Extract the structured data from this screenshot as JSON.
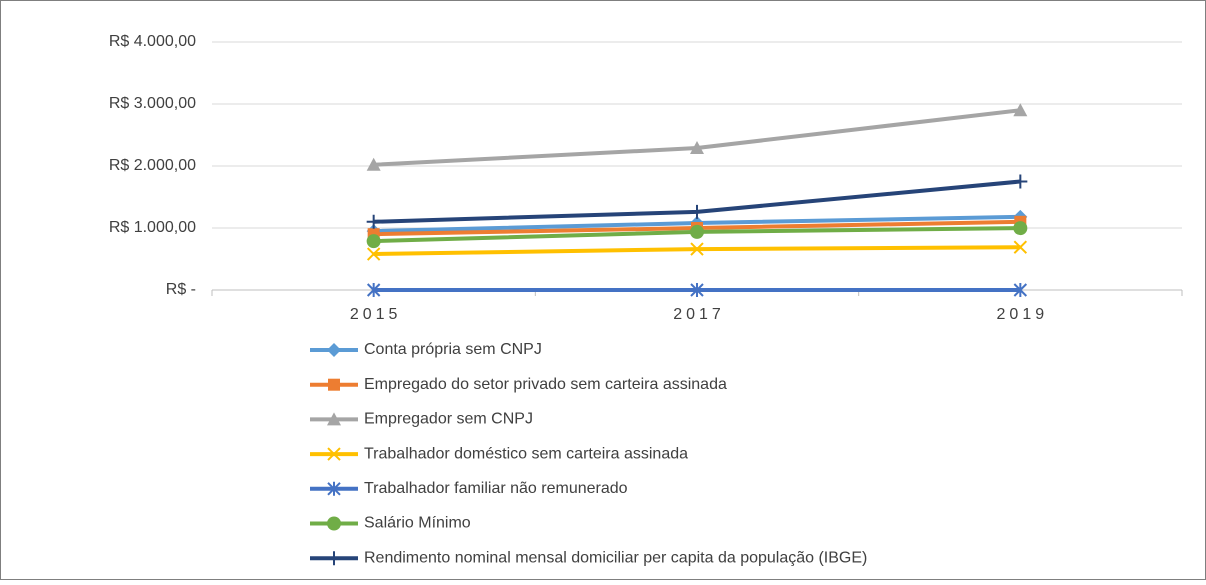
{
  "chart_data": {
    "type": "line",
    "categories": [
      "2015",
      "2017",
      "2019"
    ],
    "ylim": [
      0,
      4000
    ],
    "yticks": [
      {
        "value": 0,
        "label": "R$ -"
      },
      {
        "value": 1000,
        "label": "R$ 1.000,00"
      },
      {
        "value": 2000,
        "label": "R$ 2.000,00"
      },
      {
        "value": 3000,
        "label": "R$ 3.000,00"
      },
      {
        "value": 4000,
        "label": "R$ 4.000,00"
      }
    ],
    "grid": true,
    "legend": "bottom",
    "series": [
      {
        "name": "Conta própria sem CNPJ",
        "color": "#5b9bd5",
        "marker": "diamond",
        "values": [
          950,
          1080,
          1180
        ]
      },
      {
        "name": "Empregado do setor privado sem carteira assinada",
        "color": "#ed7d31",
        "marker": "square",
        "values": [
          900,
          1000,
          1100
        ]
      },
      {
        "name": "Empregador sem CNPJ",
        "color": "#a5a5a5",
        "marker": "triangle",
        "values": [
          2020,
          2290,
          2900
        ]
      },
      {
        "name": "Trabalhador doméstico sem carteira assinada",
        "color": "#ffc000",
        "marker": "x",
        "values": [
          580,
          660,
          690
        ]
      },
      {
        "name": "Trabalhador familiar não remunerado",
        "color": "#4472c4",
        "marker": "star",
        "values": [
          0,
          0,
          0
        ]
      },
      {
        "name": "Salário Mínimo",
        "color": "#70ad47",
        "marker": "circle",
        "values": [
          788,
          937,
          998
        ]
      },
      {
        "name": "Rendimento nominal mensal domiciliar per capita da população (IBGE)",
        "color": "#264478",
        "marker": "plus",
        "values": [
          1100,
          1260,
          1750
        ]
      }
    ]
  }
}
